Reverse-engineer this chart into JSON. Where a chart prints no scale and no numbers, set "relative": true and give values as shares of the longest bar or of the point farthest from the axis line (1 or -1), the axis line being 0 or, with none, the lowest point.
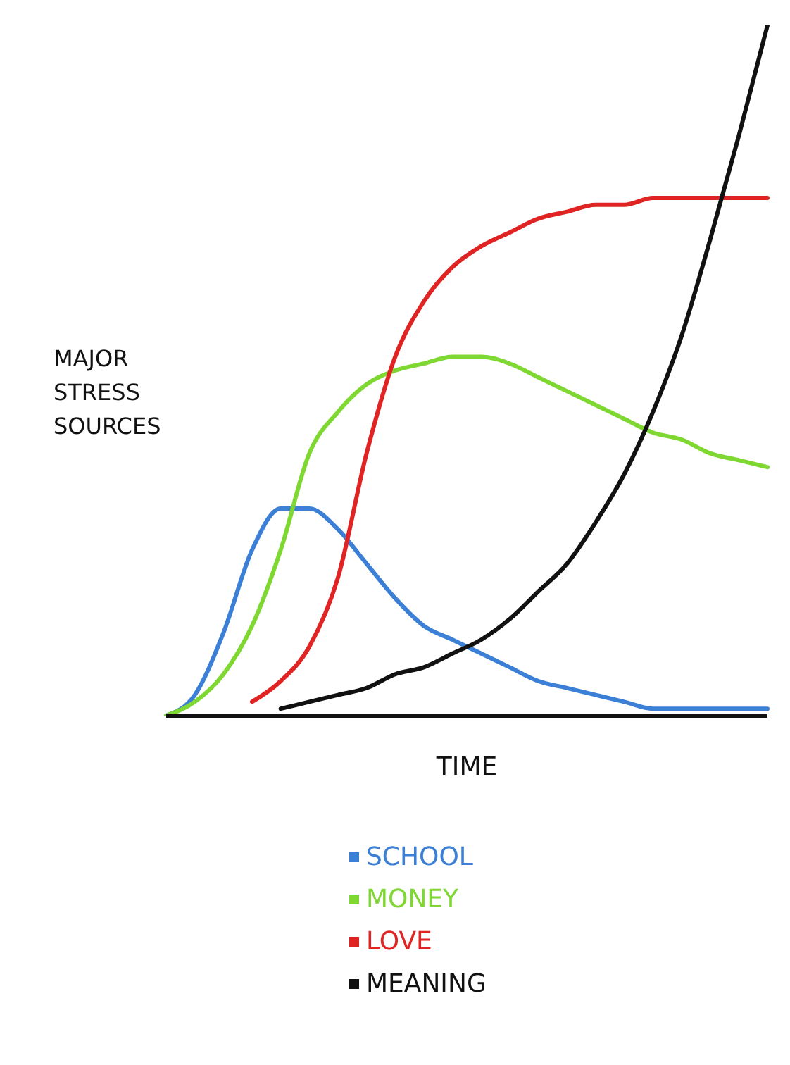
{
  "chart_data": {
    "type": "line",
    "relative": true,
    "xlabel": "TIME",
    "ylabel": "MAJOR STRESS SOURCES",
    "legend": "bottom",
    "marker": "none",
    "line_style": "solid",
    "grid": false,
    "categories": [
      null,
      null,
      null,
      null,
      null,
      null,
      null,
      null,
      null,
      null,
      null,
      null,
      null,
      null,
      null,
      null,
      null,
      null,
      null,
      null,
      null,
      null
    ],
    "series": [
      {
        "name": "SCHOOL",
        "color": "#3b80d6",
        "values": [
          0,
          0.03,
          0.12,
          0.24,
          0.3,
          0.3,
          0.27,
          0.22,
          0.17,
          0.13,
          0.11,
          0.09,
          0.07,
          0.05,
          0.04,
          0.03,
          0.02,
          0.01,
          0.01,
          0.01,
          0.01,
          0.01
        ]
      },
      {
        "name": "MONEY",
        "color": "#7fd832",
        "values": [
          0,
          0.02,
          0.06,
          0.13,
          0.24,
          0.38,
          0.44,
          0.48,
          0.5,
          0.51,
          0.52,
          0.52,
          0.51,
          0.49,
          0.47,
          0.45,
          0.43,
          0.41,
          0.4,
          0.38,
          0.37,
          0.36
        ]
      },
      {
        "name": "LOVE",
        "color": "#e02424",
        "values": [
          null,
          null,
          null,
          0.02,
          0.05,
          0.1,
          0.2,
          0.38,
          0.52,
          0.6,
          0.65,
          0.68,
          0.7,
          0.72,
          0.73,
          0.74,
          0.74,
          0.75,
          0.75,
          0.75,
          0.75,
          0.75
        ]
      },
      {
        "name": "MEANING",
        "color": "#111111",
        "values": [
          null,
          null,
          null,
          null,
          0.01,
          0.02,
          0.03,
          0.04,
          0.06,
          0.07,
          0.09,
          0.11,
          0.14,
          0.18,
          0.22,
          0.28,
          0.35,
          0.44,
          0.55,
          0.69,
          0.84,
          1
        ]
      }
    ]
  }
}
